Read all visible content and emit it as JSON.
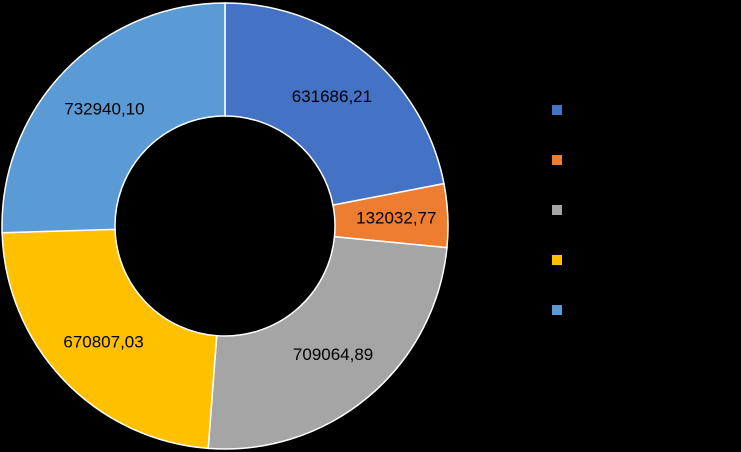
{
  "chart_data": {
    "type": "pie",
    "variant": "doughnut",
    "title": "",
    "values": [
      631686.21,
      132032.77,
      709064.89,
      670807.03,
      732940.1
    ],
    "value_labels": [
      "631686,21",
      "132032,77",
      "709064,89",
      "670807,03",
      "732940,10"
    ],
    "colors": [
      "#4472C4",
      "#ED7D31",
      "#A5A5A5",
      "#FFC000",
      "#5B9BD5"
    ],
    "legend": {
      "placement": "right",
      "entries": [
        "",
        "",
        "",
        "",
        ""
      ]
    },
    "background": "#000000"
  }
}
